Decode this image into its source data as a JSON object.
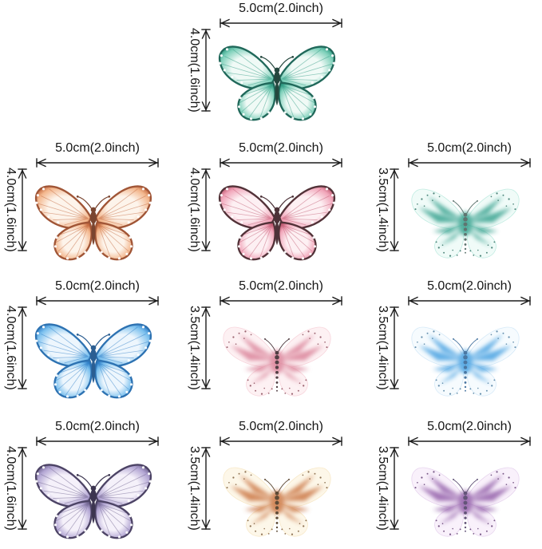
{
  "page": {
    "background": "#ffffff",
    "description_labels": {
      "width": "5.0cm(2.0inch)",
      "height_large": "4.0cm(1.6inch)",
      "height_small": "3.5cm(1.4inch)"
    },
    "line_color": "#1c1c1c"
  },
  "butterflies": [
    {
      "id": "teal",
      "color_name": "teal-green",
      "type": "veined",
      "row": 1,
      "col": 2,
      "width_label": "5.0cm(2.0inch)",
      "height_label": "4.0cm(1.6inch)",
      "colors": {
        "light": "#f0faf6",
        "mid": "#7ed0ba",
        "deep": "#2e9a82",
        "margin": "#20685a",
        "body": "#25473e",
        "dots": "#ffffff"
      }
    },
    {
      "id": "orange",
      "color_name": "peach-orange",
      "type": "veined",
      "row": 2,
      "col": 1,
      "width_label": "5.0cm(2.0inch)",
      "height_label": "4.0cm(1.6inch)",
      "colors": {
        "light": "#fdf4eb",
        "mid": "#f3b68c",
        "deep": "#c2663c",
        "margin": "#a05536",
        "body": "#7a4530",
        "dots": "#ffffff"
      }
    },
    {
      "id": "pink",
      "color_name": "rose-pink",
      "type": "veined",
      "row": 2,
      "col": 2,
      "width_label": "5.0cm(2.0inch)",
      "height_label": "4.0cm(1.6inch)",
      "colors": {
        "light": "#fdf0f3",
        "mid": "#f1a5b9",
        "deep": "#c05a72",
        "margin": "#523238",
        "body": "#4c3238",
        "dots": "#ffffff"
      }
    },
    {
      "id": "mint",
      "color_name": "mint-speckled",
      "type": "speckled",
      "row": 2,
      "col": 3,
      "width_label": "5.0cm(2.0inch)",
      "height_label": "3.5cm(1.4inch)",
      "colors": {
        "light": "#f0fbf8",
        "mid": "#9adfce",
        "deep": "#2e9e8a",
        "dots": "#2f6f63",
        "body": "#5f7570"
      }
    },
    {
      "id": "blue",
      "color_name": "sky-blue",
      "type": "veined",
      "row": 3,
      "col": 1,
      "width_label": "5.0cm(2.0inch)",
      "height_label": "4.0cm(1.6inch)",
      "colors": {
        "light": "#edf6fd",
        "mid": "#7bc0ee",
        "deep": "#2e7ec7",
        "margin": "#2d72b2",
        "body": "#2b5e92",
        "dots": "#ffffff"
      }
    },
    {
      "id": "blush",
      "color_name": "soft-pink-speckled",
      "type": "speckled",
      "row": 3,
      "col": 2,
      "width_label": "5.0cm(2.0inch)",
      "height_label": "3.5cm(1.4inch)",
      "colors": {
        "light": "#fdf1f3",
        "mid": "#f4bcc8",
        "deep": "#d97e95",
        "dots": "#8a4a58",
        "body": "#513e43"
      }
    },
    {
      "id": "skyblue",
      "color_name": "white-blue-speckled",
      "type": "speckled",
      "row": 3,
      "col": 3,
      "width_label": "5.0cm(2.0inch)",
      "height_label": "3.5cm(1.4inch)",
      "colors": {
        "light": "#f6fbfe",
        "mid": "#bcdcf4",
        "deep": "#3e9ce0",
        "dots": "#4a7a9e",
        "body": "#4a77a2"
      }
    },
    {
      "id": "purple",
      "color_name": "violet-purple",
      "type": "veined",
      "row": 4,
      "col": 1,
      "width_label": "5.0cm(2.0inch)",
      "height_label": "4.0cm(1.6inch)",
      "colors": {
        "light": "#f5f1fa",
        "mid": "#b2a5d3",
        "deep": "#6d618d",
        "margin": "#4c4365",
        "body": "#3c3550",
        "dots": "#ffffff"
      }
    },
    {
      "id": "cream",
      "color_name": "cream-peach-speckled",
      "type": "speckled",
      "row": 4,
      "col": 2,
      "width_label": "5.0cm(2.0inch)",
      "height_label": "3.5cm(1.4inch)",
      "colors": {
        "light": "#fdf7e9",
        "mid": "#f3dcab",
        "deep": "#c9713d",
        "dots": "#7a5a38",
        "body": "#5e4a35"
      }
    },
    {
      "id": "lilac",
      "color_name": "lilac-speckled",
      "type": "speckled",
      "row": 4,
      "col": 3,
      "width_label": "5.0cm(2.0inch)",
      "height_label": "3.5cm(1.4inch)",
      "colors": {
        "light": "#f9f1fb",
        "mid": "#d9bce4",
        "deep": "#8e58a6",
        "dots": "#5e3a70",
        "body": "#635478"
      }
    }
  ]
}
